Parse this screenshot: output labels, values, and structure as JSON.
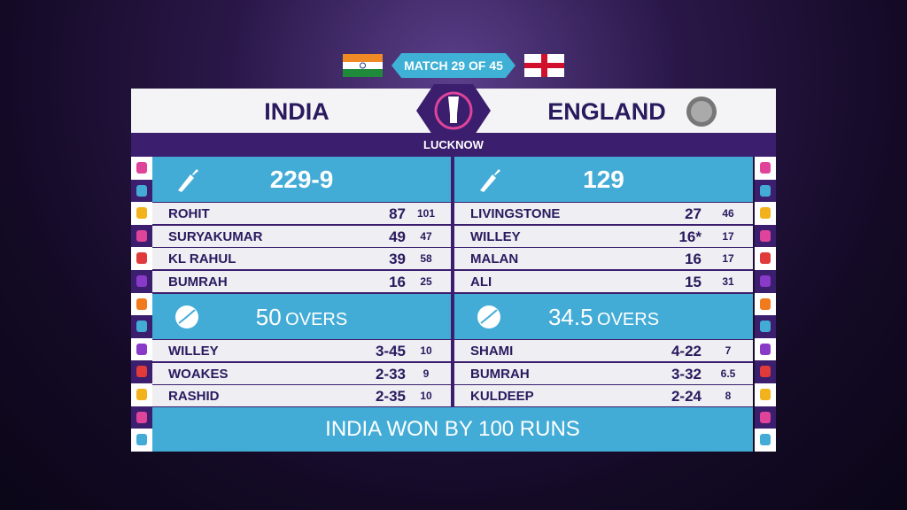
{
  "match": "MATCH 29 OF 45",
  "venue": "LUCKNOW",
  "teams": [
    {
      "name": "INDIA",
      "score": "229-9",
      "overs": "50",
      "overs_label": "OVERS",
      "batting": [
        [
          "ROHIT",
          "87",
          "101"
        ],
        [
          "SURYAKUMAR",
          "49",
          "47"
        ],
        [
          "KL RAHUL",
          "39",
          "58"
        ],
        [
          "BUMRAH",
          "16",
          "25"
        ]
      ],
      "bowling": [
        [
          "WILLEY",
          "3-45",
          "10"
        ],
        [
          "WOAKES",
          "2-33",
          "9"
        ],
        [
          "RASHID",
          "2-35",
          "10"
        ]
      ]
    },
    {
      "name": "ENGLAND",
      "score": "129",
      "overs": "34.5",
      "overs_label": "OVERS",
      "batting": [
        [
          "LIVINGSTONE",
          "27",
          "46"
        ],
        [
          "WILLEY",
          "16*",
          "17"
        ],
        [
          "MALAN",
          "16",
          "17"
        ],
        [
          "ALI",
          "15",
          "31"
        ]
      ],
      "bowling": [
        [
          "SHAMI",
          "4-22",
          "7"
        ],
        [
          "BUMRAH",
          "3-32",
          "6.5"
        ],
        [
          "KULDEEP",
          "2-24",
          "8"
        ]
      ]
    }
  ],
  "result": "INDIA WON BY 100 RUNS"
}
